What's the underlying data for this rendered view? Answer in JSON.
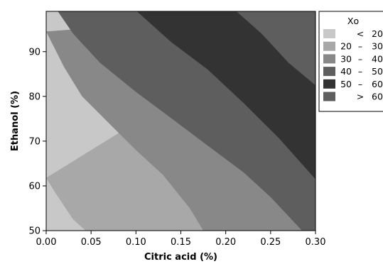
{
  "chart_data": {
    "type": "contour",
    "xlabel": "Citric acid (%)",
    "ylabel": "Ethanol (%)",
    "xlim": [
      0.0,
      0.3
    ],
    "ylim": [
      50,
      99
    ],
    "x_ticks": [
      "0.00",
      "0.05",
      "0.10",
      "0.15",
      "0.20",
      "0.25",
      "0.30"
    ],
    "x_tick_values": [
      0.0,
      0.05,
      0.1,
      0.15,
      0.2,
      0.25,
      0.3
    ],
    "y_ticks": [
      "50",
      "60",
      "70",
      "80",
      "90"
    ],
    "y_tick_values": [
      50,
      60,
      70,
      80,
      90
    ],
    "legend": {
      "title": "Xo",
      "position": "right",
      "entries": [
        {
          "lo": "",
          "sep": "<",
          "hi": "20",
          "color": "#c8c8c8"
        },
        {
          "lo": "20",
          "sep": "–",
          "hi": "30",
          "color": "#a8a8a8"
        },
        {
          "lo": "30",
          "sep": "–",
          "hi": "40",
          "color": "#888888"
        },
        {
          "lo": "40",
          "sep": "–",
          "hi": "50",
          "color": "#5e5e5e"
        },
        {
          "lo": "50",
          "sep": "–",
          "hi": "60",
          "color": "#333333"
        },
        {
          "lo": "",
          "sep": ">",
          "hi": "60",
          "color": "#5e5e5e"
        }
      ]
    },
    "contour_levels": [
      {
        "level": 20,
        "points": [
          [
            0.0,
            61.8
          ],
          [
            0.01,
            58.5
          ],
          [
            0.02,
            55.5
          ],
          [
            0.03,
            52.5
          ],
          [
            0.044,
            50.0
          ]
        ]
      },
      {
        "level": 30,
        "points": [
          [
            0.0,
            94.5
          ],
          [
            0.02,
            86.5
          ],
          [
            0.04,
            80.0
          ],
          [
            0.07,
            74.0
          ],
          [
            0.1,
            68.0
          ],
          [
            0.13,
            62.5
          ],
          [
            0.16,
            55.0
          ],
          [
            0.175,
            50.0
          ]
        ]
      },
      {
        "level": 40,
        "points": [
          [
            0.013,
            99.0
          ],
          [
            0.03,
            94.0
          ],
          [
            0.06,
            87.5
          ],
          [
            0.1,
            81.0
          ],
          [
            0.14,
            75.0
          ],
          [
            0.18,
            69.0
          ],
          [
            0.22,
            63.0
          ],
          [
            0.25,
            57.5
          ],
          [
            0.285,
            50.0
          ]
        ]
      },
      {
        "level": 50,
        "points": [
          [
            0.101,
            99.0
          ],
          [
            0.14,
            92.0
          ],
          [
            0.18,
            86.0
          ],
          [
            0.22,
            78.5
          ],
          [
            0.26,
            70.5
          ],
          [
            0.28,
            66.0
          ],
          [
            0.3,
            61.5
          ]
        ]
      },
      {
        "level": 60,
        "points": [
          [
            0.212,
            99.0
          ],
          [
            0.24,
            94.0
          ],
          [
            0.27,
            87.5
          ],
          [
            0.3,
            82.5
          ]
        ]
      }
    ],
    "grid": false
  }
}
